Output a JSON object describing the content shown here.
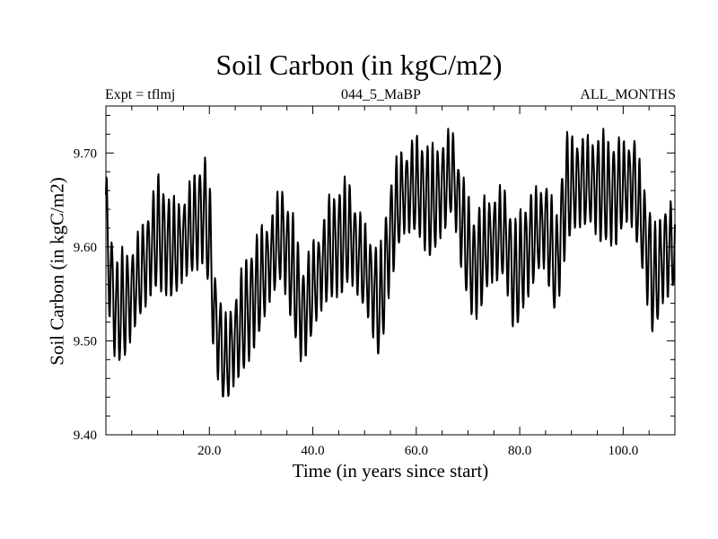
{
  "chart_data": {
    "type": "line",
    "title": "Soil Carbon (in kgC/m2)",
    "header_left": "Expt = tflmj",
    "header_center": "044_5_MaBP",
    "header_right": "ALL_MONTHS",
    "xlabel": "Time (in years since start)",
    "ylabel": "Soil Carbon (in kgC/m2)",
    "xlim": [
      0,
      110
    ],
    "ylim": [
      9.4,
      9.75
    ],
    "xticks": [
      20,
      40,
      60,
      80,
      100
    ],
    "xtick_labels": [
      "20.0",
      "40.0",
      "60.0",
      "80.0",
      "100.0"
    ],
    "yticks": [
      9.4,
      9.5,
      9.6,
      9.7
    ],
    "ytick_labels": [
      "9.40",
      "9.50",
      "9.60",
      "9.70"
    ],
    "seasonal_amplitude": 0.045,
    "series": [
      {
        "name": "Soil Carbon",
        "envelope_x": [
          0,
          1,
          2,
          4,
          7,
          10,
          13,
          16,
          19,
          20,
          21,
          23,
          26,
          30,
          34,
          36,
          38,
          40,
          43,
          47,
          51,
          53,
          55,
          57,
          60,
          63,
          67,
          69,
          71,
          74,
          77,
          79,
          82,
          85,
          87,
          89,
          92,
          95,
          98,
          100,
          102,
          104,
          106,
          108,
          110
        ],
        "envelope_y": [
          9.625,
          9.56,
          9.53,
          9.54,
          9.575,
          9.615,
          9.595,
          9.615,
          9.64,
          9.61,
          9.525,
          9.475,
          9.515,
          9.565,
          9.615,
          9.575,
          9.525,
          9.555,
          9.595,
          9.615,
          9.565,
          9.535,
          9.615,
          9.655,
          9.665,
          9.645,
          9.68,
          9.62,
          9.575,
          9.605,
          9.615,
          9.565,
          9.605,
          9.625,
          9.575,
          9.66,
          9.67,
          9.665,
          9.655,
          9.665,
          9.67,
          9.615,
          9.56,
          9.595,
          9.6
        ]
      }
    ]
  }
}
